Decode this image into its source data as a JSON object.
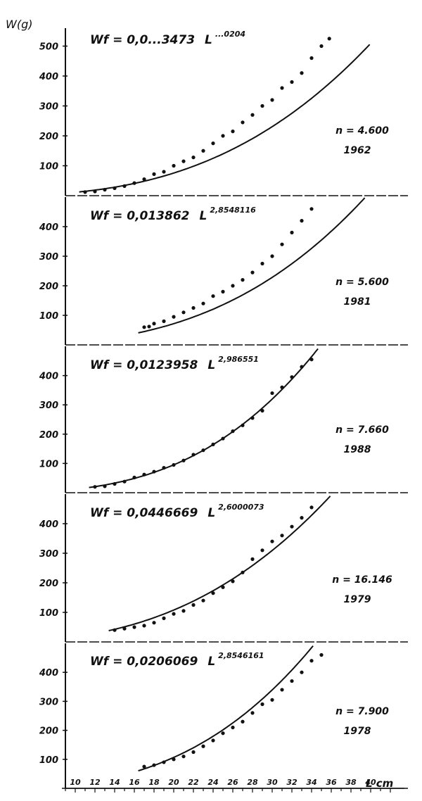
{
  "chart_data": {
    "type": "scatter",
    "ylabel": "W(g) ",
    "xlabel": "L cm",
    "x_ticks": [
      "10",
      "12",
      "14",
      "16",
      "18",
      "20",
      "22",
      "24",
      "26",
      "28",
      "30",
      "32",
      "34",
      "36",
      "38",
      "40"
    ],
    "xlim": [
      9,
      42
    ],
    "panels": [
      {
        "year": "1962",
        "n": "n = 4.600",
        "formula_prefix": "Wf = 0,",
        "formula_coef": "0...3473",
        "formula_L": "L",
        "formula_exp": "...0204",
        "y_ticks": [
          "500",
          "400",
          "300",
          "200",
          "100"
        ],
        "y_tick_values": [
          500,
          400,
          300,
          200,
          100
        ],
        "ylim": [
          0,
          560
        ],
        "curve": {
          "a": 0.02,
          "b": 2.75
        },
        "points": [
          [
            11,
            12
          ],
          [
            12,
            14
          ],
          [
            13,
            20
          ],
          [
            14,
            25
          ],
          [
            15,
            32
          ],
          [
            16,
            42
          ],
          [
            17,
            55
          ],
          [
            18,
            72
          ],
          [
            19,
            80
          ],
          [
            20,
            100
          ],
          [
            21,
            115
          ],
          [
            22,
            128
          ],
          [
            23,
            150
          ],
          [
            24,
            175
          ],
          [
            25,
            200
          ],
          [
            26,
            215
          ],
          [
            27,
            245
          ],
          [
            28,
            270
          ],
          [
            29,
            300
          ],
          [
            30,
            320
          ],
          [
            31,
            360
          ],
          [
            32,
            380
          ],
          [
            33,
            410
          ],
          [
            34,
            460
          ],
          [
            35,
            500
          ],
          [
            35.8,
            525
          ]
        ]
      },
      {
        "year": "1981",
        "n": "n = 5.600",
        "formula_prefix": "Wf = ",
        "formula_coef": "0,013862",
        "formula_L": "L",
        "formula_exp": "2,8548116",
        "y_ticks": [
          "400",
          "300",
          "200",
          "100"
        ],
        "y_tick_values": [
          400,
          300,
          200,
          100
        ],
        "ylim": [
          0,
          500
        ],
        "curve": {
          "a": 0.013862,
          "b": 2.8548116
        },
        "points": [
          [
            17,
            60
          ],
          [
            17.5,
            62
          ],
          [
            18,
            72
          ],
          [
            19,
            80
          ],
          [
            20,
            95
          ],
          [
            21,
            110
          ],
          [
            22,
            125
          ],
          [
            23,
            140
          ],
          [
            24,
            165
          ],
          [
            25,
            180
          ],
          [
            26,
            200
          ],
          [
            27,
            220
          ],
          [
            28,
            245
          ],
          [
            29,
            275
          ],
          [
            30,
            300
          ],
          [
            31,
            340
          ],
          [
            32,
            380
          ],
          [
            33,
            420
          ],
          [
            34,
            460
          ]
        ]
      },
      {
        "year": "1988",
        "n": "n = 7.660",
        "formula_prefix": "Wf = ",
        "formula_coef": "0,0123958",
        "formula_L": "L",
        "formula_exp": "2,986551",
        "y_ticks": [
          "400",
          "300",
          "200",
          "100"
        ],
        "y_tick_values": [
          400,
          300,
          200,
          100
        ],
        "ylim": [
          0,
          500
        ],
        "curve": {
          "a": 0.0123958,
          "b": 2.986551
        },
        "points": [
          [
            12,
            20
          ],
          [
            13,
            22
          ],
          [
            14,
            30
          ],
          [
            15,
            38
          ],
          [
            16,
            52
          ],
          [
            17,
            62
          ],
          [
            18,
            72
          ],
          [
            19,
            85
          ],
          [
            20,
            95
          ],
          [
            21,
            110
          ],
          [
            22,
            130
          ],
          [
            23,
            145
          ],
          [
            24,
            165
          ],
          [
            25,
            185
          ],
          [
            26,
            210
          ],
          [
            27,
            230
          ],
          [
            28,
            255
          ],
          [
            29,
            280
          ],
          [
            30,
            340
          ],
          [
            31,
            360
          ],
          [
            32,
            395
          ],
          [
            33,
            430
          ],
          [
            34,
            455
          ]
        ]
      },
      {
        "year": "1979",
        "n": "n = 16.146",
        "formula_prefix": "Wf = ",
        "formula_coef": "0,0446669",
        "formula_L": "L",
        "formula_exp": "2,6000073",
        "y_ticks": [
          "400",
          "300",
          "200",
          "100"
        ],
        "y_tick_values": [
          400,
          300,
          200,
          100
        ],
        "ylim": [
          0,
          500
        ],
        "curve": {
          "a": 0.0446669,
          "b": 2.6000073
        },
        "points": [
          [
            14,
            40
          ],
          [
            15,
            45
          ],
          [
            16,
            50
          ],
          [
            17,
            55
          ],
          [
            18,
            65
          ],
          [
            19,
            80
          ],
          [
            20,
            95
          ],
          [
            21,
            105
          ],
          [
            22,
            125
          ],
          [
            23,
            140
          ],
          [
            24,
            165
          ],
          [
            25,
            185
          ],
          [
            26,
            205
          ],
          [
            27,
            235
          ],
          [
            28,
            280
          ],
          [
            29,
            310
          ],
          [
            30,
            340
          ],
          [
            31,
            360
          ],
          [
            32,
            390
          ],
          [
            33,
            420
          ],
          [
            34,
            455
          ]
        ]
      },
      {
        "year": "1978",
        "n": "n = 7.900",
        "formula_prefix": "Wf = ",
        "formula_coef": "0,0206069",
        "formula_L": "L",
        "formula_exp": "2,8546161",
        "y_ticks": [
          "400",
          "300",
          "200",
          "100"
        ],
        "y_tick_values": [
          400,
          300,
          200,
          100
        ],
        "ylim": [
          0,
          500
        ],
        "curve": {
          "a": 0.0206069,
          "b": 2.8546161
        },
        "points": [
          [
            17,
            75
          ],
          [
            18,
            80
          ],
          [
            19,
            90
          ],
          [
            20,
            100
          ],
          [
            21,
            110
          ],
          [
            22,
            125
          ],
          [
            23,
            145
          ],
          [
            24,
            165
          ],
          [
            25,
            190
          ],
          [
            26,
            210
          ],
          [
            27,
            230
          ],
          [
            28,
            260
          ],
          [
            29,
            290
          ],
          [
            30,
            305
          ],
          [
            31,
            340
          ],
          [
            32,
            370
          ],
          [
            33,
            400
          ],
          [
            34,
            440
          ],
          [
            35,
            460
          ]
        ]
      }
    ]
  }
}
